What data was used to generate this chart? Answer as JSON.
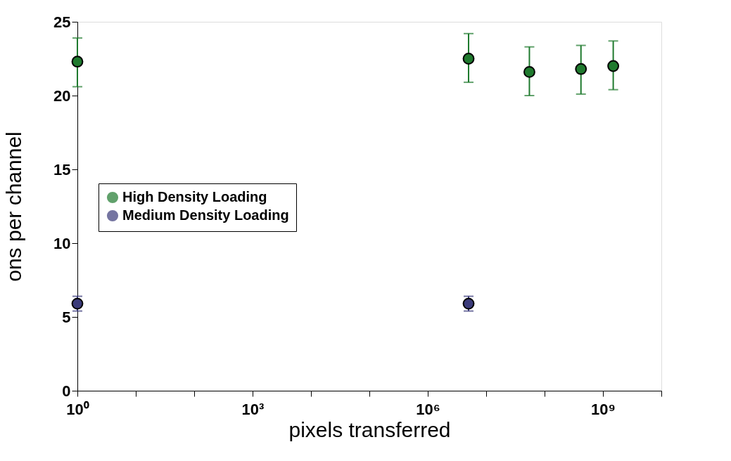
{
  "chart_data": {
    "type": "scatter",
    "xlabel": "pixels transferred",
    "ylabel": "ons per channel",
    "log": "x",
    "xlim": [
      1,
      10000000000
    ],
    "ylim": [
      0,
      25
    ],
    "xticks": [
      {
        "value": 1,
        "label": "10⁰"
      },
      {
        "value": 10,
        "label": null
      },
      {
        "value": 100,
        "label": null
      },
      {
        "value": 1000,
        "label": "10³"
      },
      {
        "value": 10000,
        "label": null
      },
      {
        "value": 100000,
        "label": null
      },
      {
        "value": 1000000,
        "label": "10⁶"
      },
      {
        "value": 10000000,
        "label": null
      },
      {
        "value": 100000000,
        "label": null
      },
      {
        "value": 1000000000,
        "label": "10⁹"
      },
      {
        "value": 10000000000,
        "label": null
      }
    ],
    "yticks": [
      0,
      5,
      10,
      15,
      20,
      25
    ],
    "grid": false,
    "legend": "left",
    "marker": "circle",
    "series": [
      {
        "name": "High Density Loading",
        "color": "#1f7a2e",
        "x": [
          1,
          5000000,
          55000000,
          420000000,
          1500000000
        ],
        "values": [
          22.3,
          22.5,
          21.6,
          21.8,
          22.0
        ],
        "errors": [
          [
            20.6,
            23.9
          ],
          [
            20.9,
            24.2
          ],
          [
            20.0,
            23.3
          ],
          [
            20.1,
            23.4
          ],
          [
            20.4,
            23.7
          ]
        ]
      },
      {
        "name": "Medium Density Loading",
        "color": "#3b3b7a",
        "x": [
          1,
          5000000
        ],
        "values": [
          5.9,
          5.9
        ],
        "errors": [
          [
            5.4,
            6.4
          ],
          [
            5.4,
            6.4
          ]
        ]
      }
    ]
  }
}
